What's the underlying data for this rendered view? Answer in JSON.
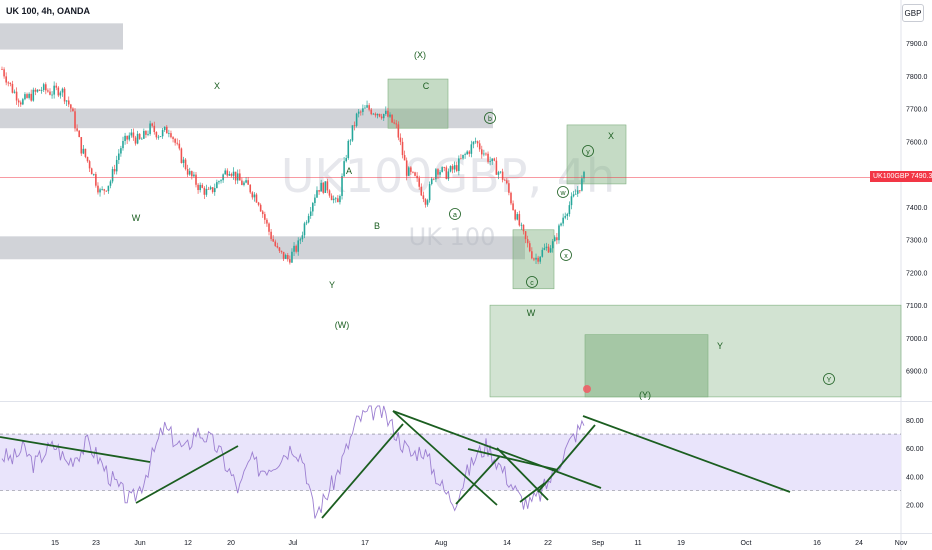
{
  "header": {
    "title": "UK 100, 4h, OANDA"
  },
  "currency_button": "GBP",
  "current_price_tag": "UK100GBP 7490.3",
  "watermark": {
    "symbol": "UK100GBP, 4h",
    "name": "UK 100"
  },
  "colors": {
    "candle_up": "#26a69a",
    "candle_down": "#ef5350",
    "zone_gray": "#b2b5be",
    "zone_green": "#7fb07f",
    "rsi_line": "#9c7fd1",
    "rsi_band": "#e9e4fb",
    "trendline": "#1b5e20",
    "price_line": "#f23645"
  },
  "chart_data": [
    {
      "type": "line",
      "title": "UK 100, 4h, OANDA",
      "ylabel": "GBP",
      "ylim": [
        6820,
        7980
      ],
      "y_ticks": [
        6900.0,
        7000.0,
        7100.0,
        7200.0,
        7300.0,
        7400.0,
        7500.0,
        7600.0,
        7700.0,
        7800.0,
        7900.0
      ],
      "x_ticks": [
        "15",
        "23",
        "Jun",
        "12",
        "20",
        "Jul",
        "17",
        "Aug",
        "14",
        "22",
        "Sep",
        "11",
        "19",
        "Oct",
        "16",
        "24",
        "Nov"
      ],
      "last_price": 7490.3,
      "series": [
        {
          "values": [
            7820,
            7760,
            7720,
            7740,
            7760,
            7750,
            7760,
            7700,
            7580,
            7520,
            7440,
            7480,
            7580,
            7620,
            7600,
            7640,
            7620,
            7640,
            7560,
            7500,
            7460,
            7440,
            7480,
            7520,
            7480,
            7460,
            7420,
            7330,
            7260,
            7240,
            7280,
            7380,
            7460,
            7460,
            7400,
            7580,
            7680,
            7700,
            7690,
            7680,
            7640,
            7510,
            7480,
            7420,
            7520,
            7500,
            7520,
            7560,
            7600,
            7560,
            7520,
            7480,
            7380,
            7300,
            7240,
            7270,
            7290,
            7380,
            7430,
            7490
          ]
        }
      ],
      "zones_gray": [
        {
          "price_from": 7880,
          "price_to": 7960
        },
        {
          "price_from": 7640,
          "price_to": 7700
        },
        {
          "price_from": 7240,
          "price_to": 7310
        }
      ],
      "zones_green": [
        {
          "price_from": 7640,
          "price_to": 7790
        },
        {
          "price_from": 7470,
          "price_to": 7650
        },
        {
          "price_from": 7150,
          "price_to": 7330
        },
        {
          "price_from": 6820,
          "price_to": 7100
        },
        {
          "price_from": 6820,
          "price_to": 7010
        }
      ],
      "wave_labels": [
        "(X)",
        "X",
        "C",
        "b",
        "X",
        "y",
        "A",
        "w",
        "W",
        "a",
        "B",
        "x",
        "Y",
        "c",
        "W",
        "(W)",
        "Y",
        "Y",
        "(Y)"
      ]
    },
    {
      "type": "line",
      "title": "",
      "ylim": [
        10,
        90
      ],
      "y_ticks": [
        20.0,
        40.0,
        60.0,
        80.0
      ],
      "band": [
        30,
        70
      ],
      "series": [
        {
          "values": [
            55,
            52,
            60,
            48,
            58,
            62,
            50,
            56,
            64,
            52,
            40,
            30,
            22,
            35,
            55,
            75,
            66,
            58,
            72,
            68,
            60,
            45,
            30,
            52,
            45,
            48,
            55,
            62,
            52,
            12,
            25,
            40,
            60,
            80,
            85,
            88,
            78,
            65,
            55,
            60,
            45,
            30,
            22,
            40,
            55,
            62,
            50,
            38,
            25,
            20,
            28,
            40,
            55,
            68,
            78
          ]
        }
      ]
    }
  ]
}
